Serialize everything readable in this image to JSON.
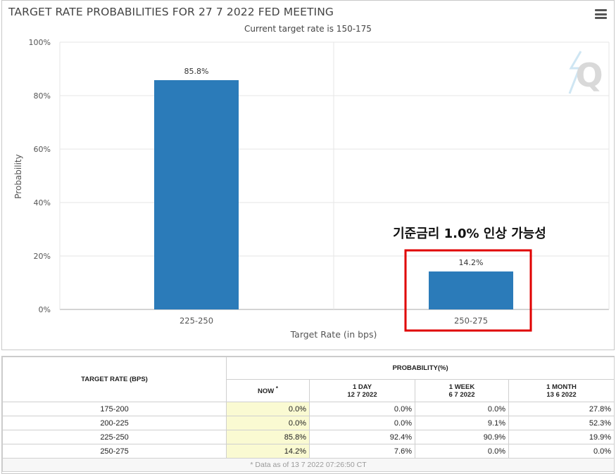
{
  "chart_data": {
    "type": "bar",
    "title": "TARGET RATE PROBABILITIES FOR 27 7 2022 FED MEETING",
    "subtitle": "Current target rate is 150-175",
    "xlabel": "Target Rate (in bps)",
    "ylabel": "Probability",
    "categories": [
      "225-250",
      "250-275"
    ],
    "values": [
      85.8,
      14.2
    ],
    "data_labels": [
      "85.8%",
      "14.2%"
    ],
    "ylim": [
      0,
      100
    ],
    "yticks": [
      "0%",
      "20%",
      "40%",
      "60%",
      "80%",
      "100%"
    ],
    "ytick_values": [
      0,
      20,
      40,
      60,
      80,
      100
    ],
    "grid": true,
    "bar_color": "#2b7bb9",
    "annotation": "기준금리 1.0% 인상 가능성",
    "annotation_color": "#e00000",
    "watermark": "Q"
  },
  "table": {
    "col_header_rate": "TARGET RATE (BPS)",
    "col_header_prob": "PROBABILITY(%)",
    "sub_headers": [
      {
        "label": "NOW",
        "mark": "*",
        "date": ""
      },
      {
        "label": "1 DAY",
        "date": "12 7 2022"
      },
      {
        "label": "1 WEEK",
        "date": "6 7 2022"
      },
      {
        "label": "1 MONTH",
        "date": "13 6 2022"
      }
    ],
    "rows": [
      {
        "rate": "175-200",
        "now": "0.0%",
        "day": "0.0%",
        "week": "0.0%",
        "month": "27.8%"
      },
      {
        "rate": "200-225",
        "now": "0.0%",
        "day": "0.0%",
        "week": "9.1%",
        "month": "52.3%"
      },
      {
        "rate": "225-250",
        "now": "85.8%",
        "day": "92.4%",
        "week": "90.9%",
        "month": "19.9%"
      },
      {
        "rate": "250-275",
        "now": "14.2%",
        "day": "7.6%",
        "week": "0.0%",
        "month": "0.0%"
      }
    ],
    "footnote": "* Data as of 13 7 2022 07:26:50 CT"
  }
}
